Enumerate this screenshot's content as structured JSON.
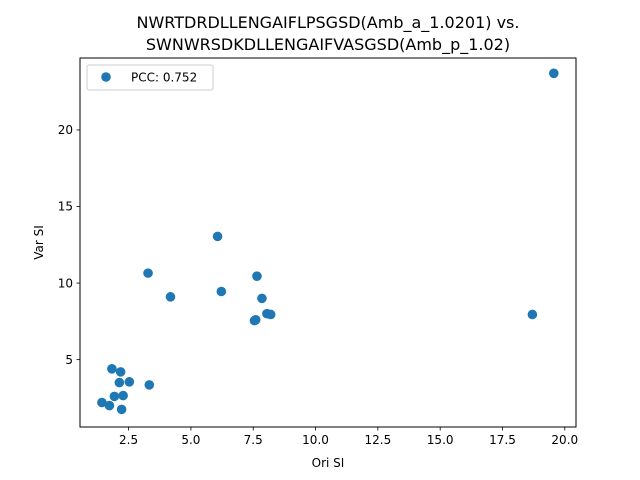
{
  "chart_data": {
    "type": "scatter",
    "title": [
      "NWRTDRDLLENGAIFLPSGSD(Amb_a_1.0201) vs.",
      "SWNWRSDKDLLENGAIFVASGSD(Amb_p_1.02)"
    ],
    "xlabel": "Ori SI",
    "ylabel": "Var SI",
    "xlim": [
      0.55,
      20.45
    ],
    "ylim": [
      0.6,
      24.7
    ],
    "xticks": [
      2.5,
      5.0,
      7.5,
      10.0,
      12.5,
      15.0,
      17.5,
      20.0
    ],
    "xtick_labels": [
      "2.5",
      "5.0",
      "7.5",
      "10.0",
      "12.5",
      "15.0",
      "17.5",
      "20.0"
    ],
    "yticks": [
      5,
      10,
      15,
      20
    ],
    "ytick_labels": [
      "5",
      "10",
      "15",
      "20"
    ],
    "grid": false,
    "legend_position": "top-left",
    "series": [
      {
        "name": "PCC: 0.752",
        "color": "#1f77b4",
        "points": [
          [
            19.56,
            23.7
          ],
          [
            18.7,
            7.95
          ],
          [
            6.07,
            13.05
          ],
          [
            6.22,
            9.45
          ],
          [
            7.65,
            10.45
          ],
          [
            7.85,
            9.0
          ],
          [
            7.55,
            7.55
          ],
          [
            7.6,
            7.6
          ],
          [
            8.05,
            8.0
          ],
          [
            8.2,
            7.95
          ],
          [
            3.28,
            10.65
          ],
          [
            4.18,
            9.1
          ],
          [
            3.33,
            3.35
          ],
          [
            1.83,
            4.4
          ],
          [
            2.18,
            4.2
          ],
          [
            2.13,
            3.5
          ],
          [
            2.53,
            3.55
          ],
          [
            1.93,
            2.6
          ],
          [
            2.28,
            2.65
          ],
          [
            1.43,
            2.2
          ],
          [
            1.73,
            2.0
          ],
          [
            2.22,
            1.75
          ]
        ]
      }
    ]
  }
}
